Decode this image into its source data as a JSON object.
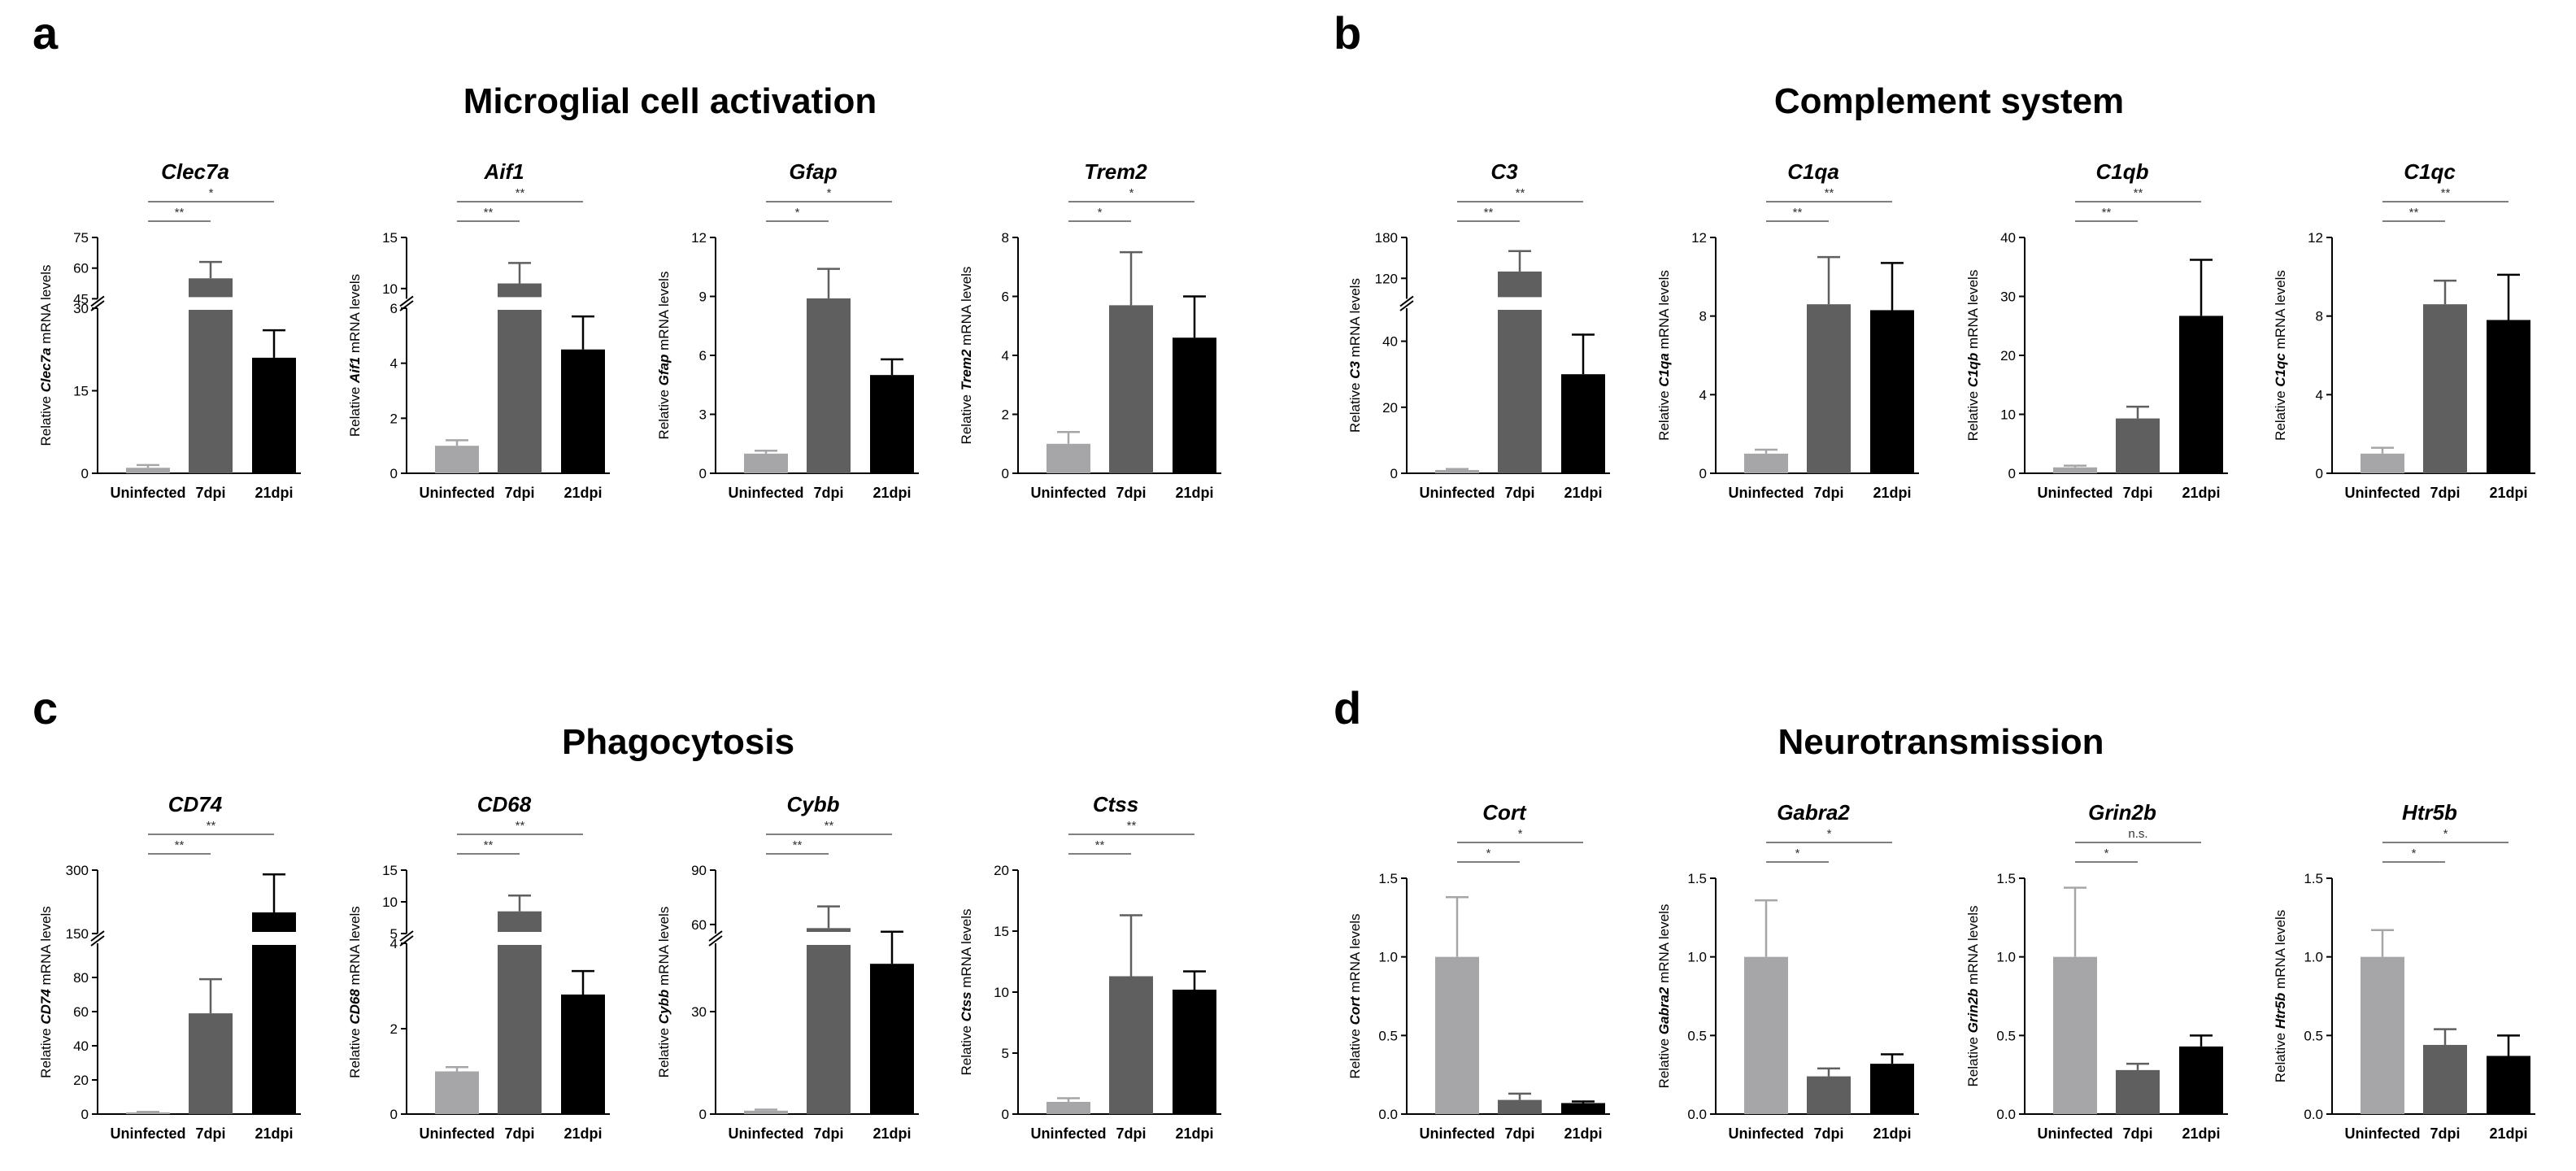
{
  "panels": [
    {
      "letter": "a",
      "title": "Microglial cell activation"
    },
    {
      "letter": "b",
      "title": "Complement system"
    },
    {
      "letter": "c",
      "title": "Phagocytosis"
    },
    {
      "letter": "d",
      "title": "Neurotransmission"
    }
  ],
  "colors": {
    "uninfected": "#a6a6a8",
    "dpi7": "#5f5f5f",
    "dpi21": "#000000",
    "axis": "#000000",
    "sig": "#7f7f7f"
  },
  "ylabel_prefix": "Relative ",
  "ylabel_suffix": " mRNA levels",
  "chart_data": [
    {
      "panel": "a",
      "gene": "Clec7a",
      "type": "bar",
      "categories": [
        "Uninfected",
        "7dpi",
        "21dpi"
      ],
      "values": [
        1,
        55,
        21
      ],
      "errors": [
        0.5,
        8,
        5
      ],
      "ylim": [
        0,
        75
      ],
      "break": {
        "low_max": 30,
        "high_min": 45
      },
      "ticks_low": [
        "0",
        "15",
        "30"
      ],
      "ticks_high": [
        "45",
        "60",
        "75"
      ],
      "sig": [
        {
          "from": 0,
          "to": 1,
          "label": "**"
        },
        {
          "from": 0,
          "to": 2,
          "label": "*"
        }
      ]
    },
    {
      "panel": "a",
      "gene": "Aif1",
      "type": "bar",
      "categories": [
        "Uninfected",
        "7dpi",
        "21dpi"
      ],
      "values": [
        1,
        10.5,
        4.5
      ],
      "errors": [
        0.2,
        2,
        1.2
      ],
      "ylim": [
        0,
        15
      ],
      "break": {
        "low_max": 6,
        "high_min": 9
      },
      "ticks_low": [
        "0",
        "2",
        "4",
        "6"
      ],
      "ticks_high": [
        "10",
        "15"
      ],
      "sig": [
        {
          "from": 0,
          "to": 1,
          "label": "**"
        },
        {
          "from": 0,
          "to": 2,
          "label": "**"
        }
      ]
    },
    {
      "panel": "a",
      "gene": "Gfap",
      "type": "bar",
      "categories": [
        "Uninfected",
        "7dpi",
        "21dpi"
      ],
      "values": [
        1,
        8.9,
        5
      ],
      "errors": [
        0.15,
        1.5,
        0.8
      ],
      "ylim": [
        0,
        12
      ],
      "ticks": [
        "0",
        "3",
        "6",
        "9",
        "12"
      ],
      "sig": [
        {
          "from": 0,
          "to": 1,
          "label": "*"
        },
        {
          "from": 0,
          "to": 2,
          "label": "*"
        }
      ]
    },
    {
      "panel": "a",
      "gene": "Trem2",
      "type": "bar",
      "categories": [
        "Uninfected",
        "7dpi",
        "21dpi"
      ],
      "values": [
        1,
        5.7,
        4.6
      ],
      "errors": [
        0.4,
        1.8,
        1.4
      ],
      "ylim": [
        0,
        8
      ],
      "ticks": [
        "0",
        "2",
        "4",
        "6",
        "8"
      ],
      "sig": [
        {
          "from": 0,
          "to": 1,
          "label": "*"
        },
        {
          "from": 0,
          "to": 2,
          "label": "*"
        }
      ]
    },
    {
      "panel": "b",
      "gene": "C3",
      "type": "bar",
      "categories": [
        "Uninfected",
        "7dpi",
        "21dpi"
      ],
      "values": [
        1,
        130,
        30
      ],
      "errors": [
        0.3,
        30,
        12
      ],
      "ylim": [
        0,
        180
      ],
      "break": {
        "low_max": 50,
        "high_min": 90
      },
      "ticks_low": [
        "0",
        "20",
        "40"
      ],
      "ticks_high": [
        "120",
        "180"
      ],
      "sig": [
        {
          "from": 0,
          "to": 1,
          "label": "**"
        },
        {
          "from": 0,
          "to": 2,
          "label": "**"
        }
      ]
    },
    {
      "panel": "b",
      "gene": "C1qa",
      "type": "bar",
      "categories": [
        "Uninfected",
        "7dpi",
        "21dpi"
      ],
      "values": [
        1,
        8.6,
        8.3
      ],
      "errors": [
        0.2,
        2.4,
        2.4
      ],
      "ylim": [
        0,
        12
      ],
      "ticks": [
        "0",
        "4",
        "8",
        "12"
      ],
      "sig": [
        {
          "from": 0,
          "to": 1,
          "label": "**"
        },
        {
          "from": 0,
          "to": 2,
          "label": "**"
        }
      ]
    },
    {
      "panel": "b",
      "gene": "C1qb",
      "type": "bar",
      "categories": [
        "Uninfected",
        "7dpi",
        "21dpi"
      ],
      "values": [
        1,
        9.3,
        26.7
      ],
      "errors": [
        0.3,
        2,
        9.5
      ],
      "ylim": [
        0,
        40
      ],
      "ticks": [
        "0",
        "10",
        "20",
        "30",
        "40"
      ],
      "sig": [
        {
          "from": 0,
          "to": 1,
          "label": "**"
        },
        {
          "from": 0,
          "to": 2,
          "label": "**"
        }
      ]
    },
    {
      "panel": "b",
      "gene": "C1qc",
      "type": "bar",
      "categories": [
        "Uninfected",
        "7dpi",
        "21dpi"
      ],
      "values": [
        1,
        8.6,
        7.8
      ],
      "errors": [
        0.3,
        1.2,
        2.3
      ],
      "ylim": [
        0,
        12
      ],
      "ticks": [
        "0",
        "4",
        "8",
        "12"
      ],
      "sig": [
        {
          "from": 0,
          "to": 1,
          "label": "**"
        },
        {
          "from": 0,
          "to": 2,
          "label": "**"
        }
      ]
    },
    {
      "panel": "c",
      "gene": "CD74",
      "type": "bar",
      "categories": [
        "Uninfected",
        "7dpi",
        "21dpi"
      ],
      "values": [
        1,
        59,
        200
      ],
      "errors": [
        0.3,
        20,
        90
      ],
      "ylim": [
        0,
        300
      ],
      "break": {
        "low_max": 100,
        "high_min": 150
      },
      "ticks_low": [
        "0",
        "20",
        "40",
        "60",
        "80"
      ],
      "ticks_high": [
        "150",
        "300"
      ],
      "sig": [
        {
          "from": 0,
          "to": 1,
          "label": "**"
        },
        {
          "from": 0,
          "to": 2,
          "label": "**"
        }
      ]
    },
    {
      "panel": "c",
      "gene": "CD68",
      "type": "bar",
      "categories": [
        "Uninfected",
        "7dpi",
        "21dpi"
      ],
      "values": [
        1,
        8.5,
        2.8
      ],
      "errors": [
        0.1,
        2.5,
        0.55
      ],
      "ylim": [
        0,
        15
      ],
      "break": {
        "low_max": 4,
        "high_min": 5
      },
      "ticks_low": [
        "0",
        "2",
        "4"
      ],
      "ticks_high": [
        "5",
        "10",
        "15"
      ],
      "sig": [
        {
          "from": 0,
          "to": 1,
          "label": "**"
        },
        {
          "from": 0,
          "to": 2,
          "label": "**"
        }
      ]
    },
    {
      "panel": "c",
      "gene": "Cybb",
      "type": "bar",
      "categories": [
        "Uninfected",
        "7dpi",
        "21dpi"
      ],
      "values": [
        1,
        58,
        44
      ],
      "errors": [
        0.3,
        12,
        12
      ],
      "ylim": [
        0,
        90
      ],
      "break": {
        "low_max": 50,
        "high_min": 55
      },
      "ticks_low": [
        "0",
        "30"
      ],
      "ticks_high": [
        "60",
        "90"
      ],
      "sig": [
        {
          "from": 0,
          "to": 1,
          "label": "**"
        },
        {
          "from": 0,
          "to": 2,
          "label": "**"
        }
      ]
    },
    {
      "panel": "c",
      "gene": "Ctss",
      "type": "bar",
      "categories": [
        "Uninfected",
        "7dpi",
        "21dpi"
      ],
      "values": [
        1,
        11.3,
        10.2
      ],
      "errors": [
        0.3,
        5,
        1.5
      ],
      "ylim": [
        0,
        20
      ],
      "ticks": [
        "0",
        "5",
        "10",
        "15",
        "20"
      ],
      "sig": [
        {
          "from": 0,
          "to": 1,
          "label": "**"
        },
        {
          "from": 0,
          "to": 2,
          "label": "**"
        }
      ]
    },
    {
      "panel": "d",
      "gene": "Cort",
      "type": "bar",
      "categories": [
        "Uninfected",
        "7dpi",
        "21dpi"
      ],
      "values": [
        1,
        0.09,
        0.07
      ],
      "errors": [
        0.38,
        0.04,
        0.01
      ],
      "ylim": [
        0,
        1.5
      ],
      "ticks": [
        "0.0",
        "0.5",
        "1.0",
        "1.5"
      ],
      "sig": [
        {
          "from": 0,
          "to": 1,
          "label": "*"
        },
        {
          "from": 0,
          "to": 2,
          "label": "*"
        }
      ]
    },
    {
      "panel": "d",
      "gene": "Gabra2",
      "type": "bar",
      "categories": [
        "Uninfected",
        "7dpi",
        "21dpi"
      ],
      "values": [
        1,
        0.24,
        0.32
      ],
      "errors": [
        0.36,
        0.05,
        0.06
      ],
      "ylim": [
        0,
        1.5
      ],
      "ticks": [
        "0.0",
        "0.5",
        "1.0",
        "1.5"
      ],
      "sig": [
        {
          "from": 0,
          "to": 1,
          "label": "*"
        },
        {
          "from": 0,
          "to": 2,
          "label": "*"
        }
      ]
    },
    {
      "panel": "d",
      "gene": "Grin2b",
      "type": "bar",
      "categories": [
        "Uninfected",
        "7dpi",
        "21dpi"
      ],
      "values": [
        1,
        0.28,
        0.43
      ],
      "errors": [
        0.44,
        0.04,
        0.07
      ],
      "ylim": [
        0,
        1.5
      ],
      "ticks": [
        "0.0",
        "0.5",
        "1.0",
        "1.5"
      ],
      "sig": [
        {
          "from": 0,
          "to": 1,
          "label": "*"
        },
        {
          "from": 0,
          "to": 2,
          "label": "n.s."
        }
      ]
    },
    {
      "panel": "d",
      "gene": "Htr5b",
      "type": "bar",
      "categories": [
        "Uninfected",
        "7dpi",
        "21dpi"
      ],
      "values": [
        1,
        0.44,
        0.37
      ],
      "errors": [
        0.17,
        0.1,
        0.13
      ],
      "ylim": [
        0,
        1.5
      ],
      "ticks": [
        "0.0",
        "0.5",
        "1.0",
        "1.5"
      ],
      "sig": [
        {
          "from": 0,
          "to": 1,
          "label": "*"
        },
        {
          "from": 0,
          "to": 2,
          "label": "*"
        }
      ]
    }
  ]
}
